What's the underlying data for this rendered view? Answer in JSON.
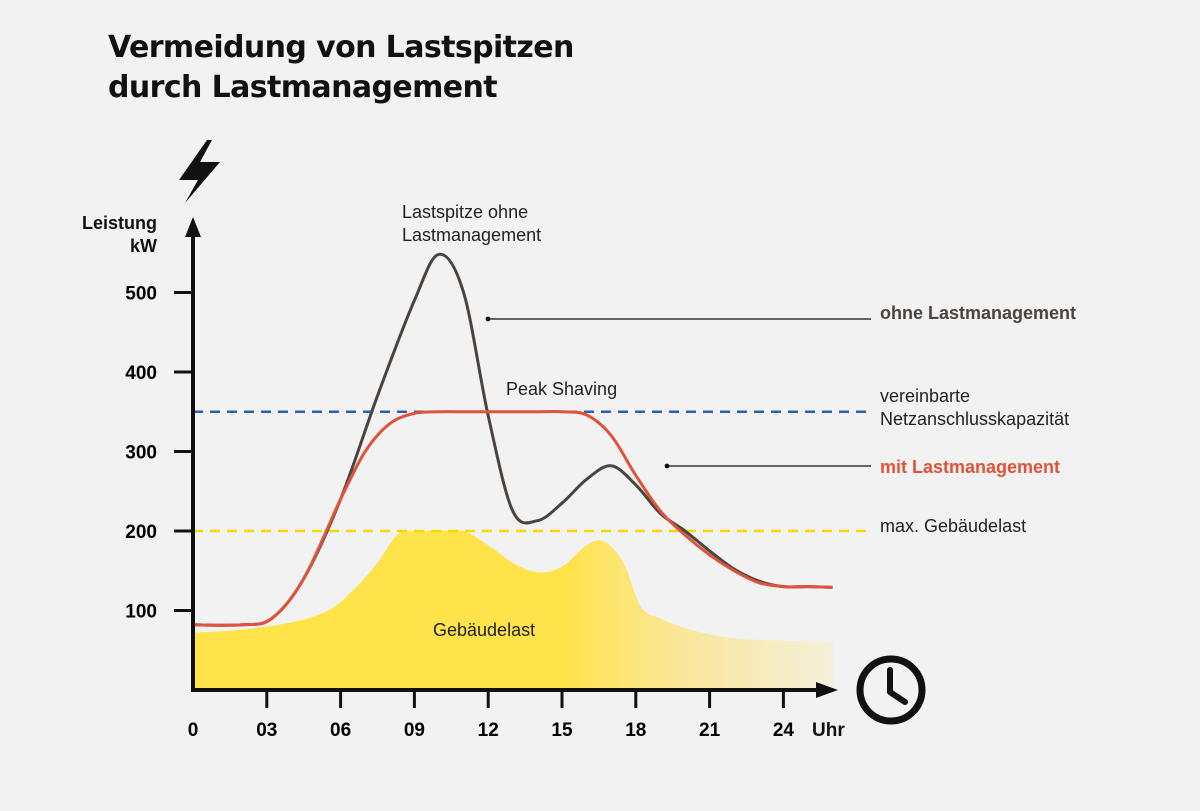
{
  "title": {
    "line1": "Vermeidung von Lastspitzen",
    "line2": "durch Lastmanagement"
  },
  "icons": {
    "power": "lightning-bolt-icon",
    "time": "clock-icon"
  },
  "colors": {
    "background": "#f2f2f2",
    "ohne_line": "#4a4440",
    "mit_line": "#e0533a",
    "capacity_line": "#2a62b0",
    "building_max_line": "#f5d800",
    "building_fill": "#ffe34a",
    "axis": "#111111"
  },
  "chart_data": {
    "type": "area",
    "title": "Vermeidung von Lastspitzen durch Lastmanagement",
    "ylabel": "Leistung kW",
    "xlabel": "Uhr",
    "x_ticks": [
      "0",
      "03",
      "06",
      "09",
      "12",
      "15",
      "18",
      "21",
      "24"
    ],
    "y_ticks": [
      "100",
      "200",
      "300",
      "400",
      "500"
    ],
    "xlim": [
      0,
      26
    ],
    "ylim": [
      0,
      600
    ],
    "grid": false,
    "series": [
      {
        "name": "ohne Lastmanagement",
        "kind": "line",
        "x": [
          0,
          2,
          3.2,
          4.5,
          6,
          7.5,
          9,
          10,
          11,
          12,
          13,
          14,
          15,
          16,
          17,
          18,
          19,
          20,
          21,
          22,
          23,
          24,
          25,
          26
        ],
        "y": [
          82,
          82,
          90,
          140,
          240,
          370,
          490,
          548,
          500,
          345,
          225,
          213,
          235,
          265,
          282,
          258,
          222,
          200,
          175,
          152,
          137,
          130,
          130,
          129
        ]
      },
      {
        "name": "mit Lastmanagement",
        "kind": "line",
        "x": [
          0,
          2,
          3.2,
          4.5,
          6,
          7,
          8,
          9,
          10,
          11,
          12,
          13,
          14,
          15,
          16,
          17,
          18,
          19,
          20,
          21,
          22,
          23,
          24,
          25,
          26
        ],
        "y": [
          82,
          82,
          90,
          140,
          240,
          300,
          335,
          348,
          350,
          350,
          350,
          350,
          350,
          350,
          346,
          320,
          270,
          225,
          195,
          170,
          150,
          135,
          130,
          130,
          129
        ]
      },
      {
        "name": "Gebäudelast",
        "kind": "area",
        "x": [
          0,
          2,
          4,
          5.5,
          6.5,
          7.5,
          8.3,
          9,
          10,
          11,
          12,
          13,
          14,
          15,
          16,
          16.7,
          17.5,
          18.2,
          19,
          20,
          21,
          22,
          23,
          24,
          25,
          26
        ],
        "y": [
          72,
          76,
          85,
          100,
          125,
          160,
          195,
          200,
          200,
          200,
          182,
          160,
          148,
          155,
          182,
          187,
          160,
          105,
          90,
          78,
          70,
          65,
          63,
          62,
          61,
          60
        ]
      }
    ],
    "reference_lines": [
      {
        "name": "vereinbarte Netzanschlusskapazität",
        "y": 350,
        "style": "dashed"
      },
      {
        "name": "max. Gebäudelast",
        "y": 200,
        "style": "dashed"
      }
    ],
    "annotations": {
      "peak": "Lastspitze ohne\nLastmanagement",
      "peak_shaving": "Peak Shaving",
      "building_load": "Gebäudelast"
    },
    "legend": {
      "ohne": "ohne Lastmanagement",
      "capacity": "vereinbarte\nNetzanschlusskapazität",
      "mit": "mit Lastmanagement",
      "building_max": "max. Gebäudelast"
    }
  }
}
